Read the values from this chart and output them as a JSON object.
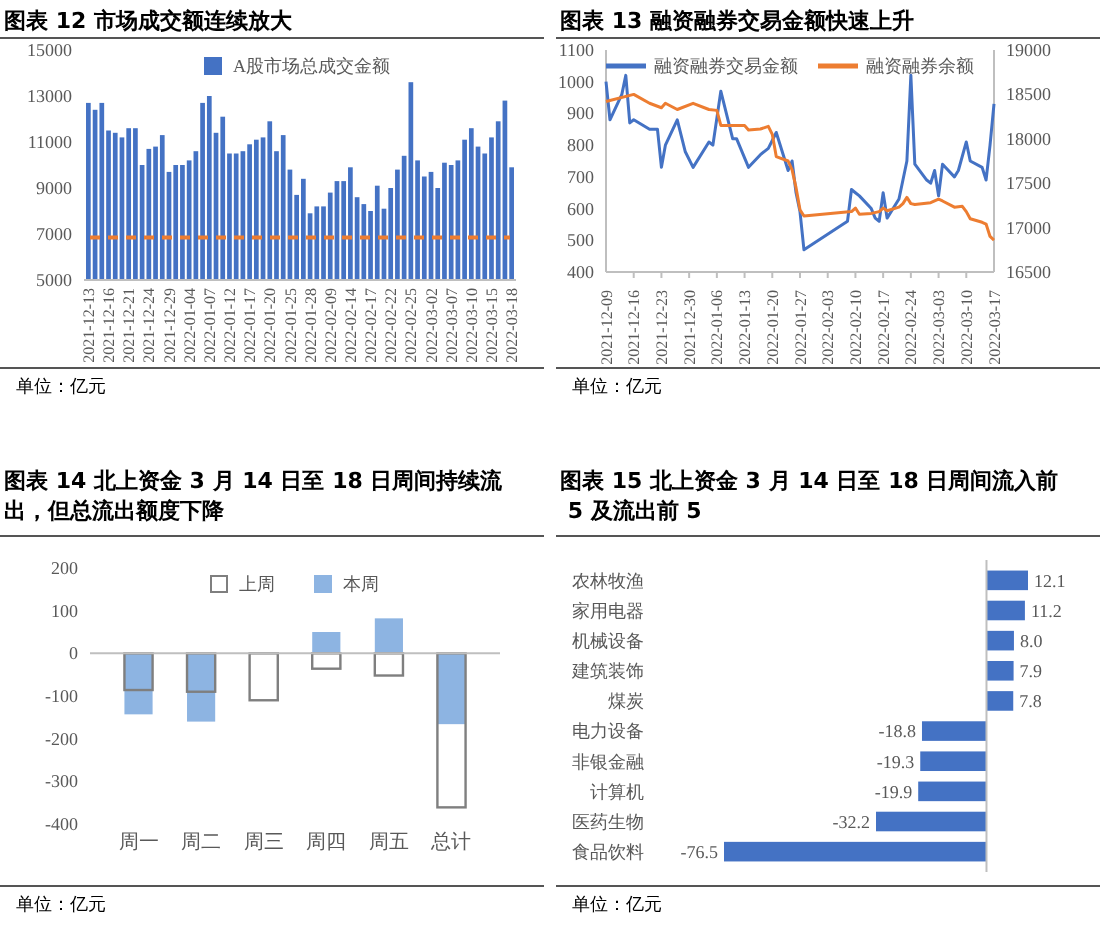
{
  "chart_data": [
    {
      "type": "bar",
      "title": "图表 12 市场成交额连续放大",
      "annotations": [
        "单位：亿元"
      ],
      "legend": "top",
      "ylim": [
        5000,
        15000
      ],
      "yticks": [
        5000,
        7000,
        9000,
        11000,
        13000,
        15000
      ],
      "categories": [
        "2021-12-13",
        null,
        null,
        "2021-12-16",
        null,
        null,
        "2021-12-21",
        null,
        null,
        "2021-12-24",
        null,
        null,
        "2021-12-29",
        null,
        null,
        "2022-01-04",
        null,
        null,
        "2022-01-07",
        null,
        null,
        "2022-01-12",
        null,
        null,
        "2022-01-17",
        null,
        null,
        "2022-01-20",
        null,
        null,
        "2022-01-25",
        null,
        null,
        "2022-01-28",
        null,
        null,
        "2022-02-09",
        null,
        null,
        "2022-02-14",
        null,
        null,
        "2022-02-17",
        null,
        null,
        "2022-02-22",
        null,
        null,
        "2022-02-25",
        null,
        null,
        "2022-03-02",
        null,
        null,
        "2022-03-07",
        null,
        null,
        "2022-03-10",
        null,
        null,
        "2022-03-15",
        null,
        null,
        "2022-03-18"
      ],
      "series": [
        {
          "name": "A股市场总成交金额",
          "color": "#4472c4",
          "values": [
            12700,
            12400,
            12700,
            11500,
            11400,
            11200,
            11600,
            11600,
            10000,
            10700,
            10800,
            11300,
            9700,
            10000,
            10000,
            10200,
            10600,
            12700,
            13000,
            11400,
            12100,
            10500,
            10500,
            10600,
            10900,
            11100,
            11200,
            11900,
            10600,
            11300,
            9800,
            8700,
            9400,
            7900,
            8200,
            8200,
            8800,
            9300,
            9300,
            9900,
            8600,
            8300,
            8000,
            9100,
            8100,
            9000,
            9800,
            10400,
            13600,
            10200,
            9500,
            9700,
            9000,
            10100,
            10000,
            10200,
            11100,
            11600,
            10800,
            10500,
            11200,
            11900,
            12800,
            9900
          ]
        }
      ],
      "ref_lines": [
        {
          "axis": "y",
          "value": 6850,
          "color": "#ed7d31",
          "line_style": "dashed"
        }
      ]
    },
    {
      "type": "line",
      "title": "图表 13 融资融券交易金额快速上升",
      "annotations": [
        "单位：亿元"
      ],
      "legend": "top",
      "xlim": [
        "2021-12-09",
        "2022-03-17"
      ],
      "xticks": [
        "2021-12-09",
        "2021-12-16",
        "2021-12-23",
        "2021-12-30",
        "2022-01-06",
        "2022-01-13",
        "2022-01-20",
        "2022-01-27",
        "2022-02-03",
        "2022-02-10",
        "2022-02-17",
        "2022-02-24",
        "2022-03-03",
        "2022-03-10",
        "2022-03-17"
      ],
      "ylim": [
        400,
        1100
      ],
      "yticks": [
        400,
        500,
        600,
        700,
        800,
        900,
        1000,
        1100
      ],
      "y2lim": [
        16500,
        19000
      ],
      "y2ticks": [
        16500,
        17000,
        17500,
        18000,
        18500,
        19000
      ],
      "series": [
        {
          "name": "融资融券交易金额",
          "color": "#4472c4",
          "x": [
            "2021-12-09",
            "2021-12-10",
            "2021-12-13",
            "2021-12-14",
            "2021-12-15",
            "2021-12-16",
            "2021-12-20",
            "2021-12-22",
            "2021-12-23",
            "2021-12-24",
            "2021-12-27",
            "2021-12-29",
            "2021-12-31",
            "2022-01-04",
            "2022-01-05",
            "2022-01-07",
            "2022-01-10",
            "2022-01-11",
            "2022-01-14",
            "2022-01-17",
            "2022-01-19",
            "2022-01-21",
            "2022-01-24",
            "2022-01-25",
            "2022-01-26",
            "2022-01-27",
            "2022-01-28",
            "2022-02-08",
            "2022-02-09",
            "2022-02-10",
            "2022-02-11",
            "2022-02-14",
            "2022-02-15",
            "2022-02-16",
            "2022-02-17",
            "2022-02-18",
            "2022-02-21",
            "2022-02-22",
            "2022-02-23",
            "2022-02-24",
            "2022-02-25",
            "2022-02-28",
            "2022-03-01",
            "2022-03-02",
            "2022-03-03",
            "2022-03-04",
            "2022-03-07",
            "2022-03-08",
            "2022-03-10",
            "2022-03-11",
            "2022-03-14",
            "2022-03-15",
            "2022-03-16",
            "2022-03-17"
          ],
          "values": [
            1000,
            880,
            960,
            1020,
            870,
            880,
            850,
            850,
            730,
            800,
            880,
            780,
            730,
            810,
            800,
            970,
            820,
            820,
            730,
            770,
            790,
            840,
            720,
            750,
            650,
            590,
            470,
            560,
            660,
            650,
            640,
            600,
            570,
            560,
            650,
            570,
            630,
            690,
            750,
            1020,
            740,
            690,
            680,
            720,
            640,
            740,
            700,
            720,
            810,
            750,
            730,
            690,
            800,
            930
          ]
        },
        {
          "name": "融资融券余额",
          "color": "#ed7d31",
          "axis": "y2",
          "x": [
            "2021-12-09",
            "2021-12-16",
            "2021-12-20",
            "2021-12-23",
            "2021-12-24",
            "2021-12-27",
            "2021-12-31",
            "2022-01-04",
            "2022-01-06",
            "2022-01-07",
            "2022-01-11",
            "2022-01-13",
            "2022-01-14",
            "2022-01-17",
            "2022-01-19",
            "2022-01-20",
            "2022-01-21",
            "2022-01-24",
            "2022-01-25",
            "2022-01-26",
            "2022-01-27",
            "2022-01-28",
            "2022-02-09",
            "2022-02-10",
            "2022-02-11",
            "2022-02-14",
            "2022-02-16",
            "2022-02-17",
            "2022-02-18",
            "2022-02-21",
            "2022-02-22",
            "2022-02-23",
            "2022-02-24",
            "2022-02-25",
            "2022-03-01",
            "2022-03-03",
            "2022-03-04",
            "2022-03-07",
            "2022-03-09",
            "2022-03-10",
            "2022-03-11",
            "2022-03-14",
            "2022-03-15",
            "2022-03-16",
            "2022-03-17"
          ],
          "values": [
            18420,
            18500,
            18400,
            18350,
            18400,
            18330,
            18400,
            18330,
            18320,
            18150,
            18150,
            18150,
            18100,
            18110,
            18140,
            18050,
            17800,
            17750,
            17650,
            17450,
            17200,
            17130,
            17180,
            17220,
            17150,
            17160,
            17180,
            17220,
            17190,
            17230,
            17270,
            17340,
            17270,
            17260,
            17280,
            17320,
            17300,
            17230,
            17240,
            17180,
            17100,
            17060,
            17040,
            16900,
            16860
          ]
        }
      ]
    },
    {
      "type": "bar",
      "title": "图表 14 北上资金 3 月 14 日至 18 日周间持续流出，但总流出额度下降",
      "annotations": [
        "单位：亿元"
      ],
      "legend": "top",
      "ylim": [
        -400,
        200
      ],
      "yticks": [
        -400,
        -300,
        -200,
        -100,
        0,
        100,
        200
      ],
      "categories": [
        "周一",
        "周二",
        "周三",
        "周四",
        "周五",
        "总计"
      ],
      "series": [
        {
          "name": "本周",
          "color": "#8db4e2",
          "values": [
            -143,
            -160,
            null,
            50,
            82,
            -166
          ]
        },
        {
          "name": "上周",
          "color": "#7f7f7f",
          "values": [
            -86,
            -90,
            -110,
            -36,
            -52,
            -361
          ]
        }
      ]
    },
    {
      "type": "bar",
      "orientation": "horizontal",
      "title": "图表 15 北上资金 3 月 14 日至 18 日周间流入前 5 及流出前 5",
      "annotations": [
        "单位：亿元"
      ],
      "categories": [
        "农林牧渔",
        "家用电器",
        "机械设备",
        "建筑装饰",
        "煤炭",
        "电力设备",
        "非银金融",
        "计算机",
        "医药生物",
        "食品饮料"
      ],
      "values": [
        12.1,
        11.2,
        8.0,
        7.9,
        7.8,
        -18.8,
        -19.3,
        -19.9,
        -32.2,
        -76.5
      ],
      "color": "#4472c4",
      "value_labels": [
        "12.1",
        "11.2",
        "8.0",
        "7.9",
        "7.8",
        "-18.8",
        "-19.3",
        "-19.9",
        "-32.2",
        "-76.5"
      ]
    }
  ]
}
